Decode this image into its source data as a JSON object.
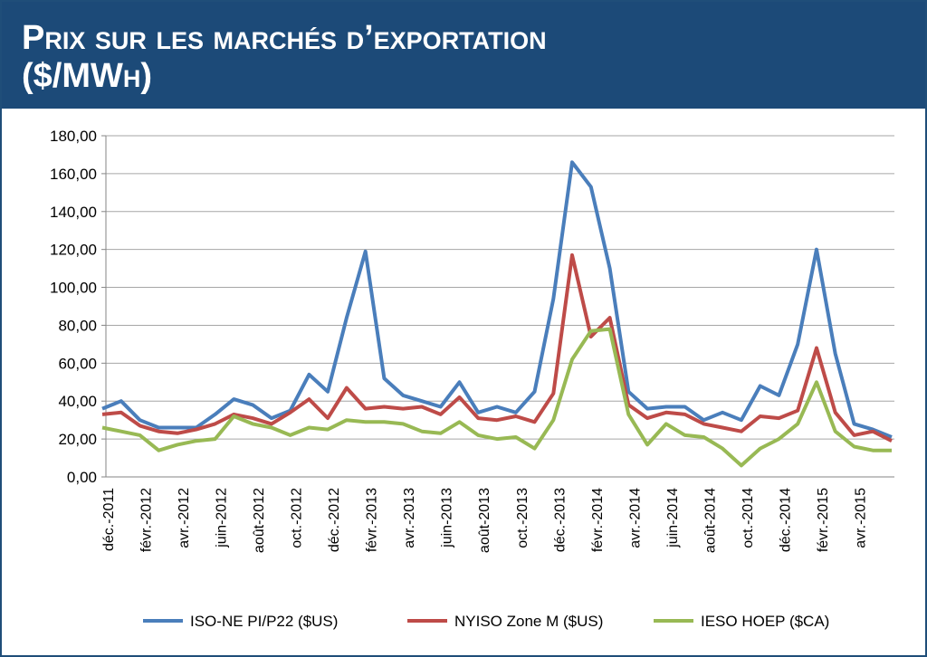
{
  "chart_data": {
    "type": "line",
    "title": "Prix sur les marchés d’exportation",
    "subtitle": "($/MWh)",
    "categories": [
      "déc.-2011",
      null,
      "févr.-2012",
      null,
      "avr.-2012",
      null,
      "juin-2012",
      null,
      "août-2012",
      null,
      "oct.-2012",
      null,
      "déc.-2012",
      null,
      "févr.-2013",
      null,
      "avr.-2013",
      null,
      "juin-2013",
      null,
      "août-2013",
      null,
      "oct.-2013",
      null,
      "déc.-2013",
      null,
      "févr.-2014",
      null,
      "avr.-2014",
      null,
      "juin-2014",
      null,
      "août-2014",
      null,
      "oct.-2014",
      null,
      "déc.-2014",
      null,
      "févr.-2015",
      null,
      "avr.-2015",
      null,
      null
    ],
    "series": [
      {
        "name": "ISO-NE PI/P22 ($US)",
        "color": "#4a7ebb",
        "values": [
          36,
          40,
          30,
          26,
          26,
          26,
          33,
          41,
          38,
          31,
          35,
          54,
          45,
          84,
          119,
          52,
          43,
          40,
          37,
          50,
          34,
          37,
          34,
          45,
          94,
          166,
          153,
          110,
          45,
          36,
          37,
          37,
          30,
          34,
          30,
          48,
          43,
          70,
          120,
          65,
          28,
          25,
          21
        ]
      },
      {
        "name": "NYISO Zone M ($US)",
        "color": "#be4b48",
        "values": [
          33,
          34,
          27,
          24,
          23,
          25,
          28,
          33,
          31,
          28,
          34,
          41,
          31,
          47,
          36,
          37,
          36,
          37,
          33,
          42,
          31,
          30,
          32,
          29,
          44,
          117,
          74,
          84,
          38,
          31,
          34,
          33,
          28,
          26,
          24,
          32,
          31,
          35,
          68,
          34,
          22,
          24,
          19
        ]
      },
      {
        "name": "IESO HOEP ($CA)",
        "color": "#98b954",
        "values": [
          26,
          24,
          22,
          14,
          17,
          19,
          20,
          32,
          28,
          26,
          22,
          26,
          25,
          30,
          29,
          29,
          28,
          24,
          23,
          29,
          22,
          20,
          21,
          15,
          30,
          62,
          77,
          78,
          33,
          17,
          28,
          22,
          21,
          15,
          6,
          15,
          20,
          28,
          50,
          24,
          16,
          14,
          14
        ]
      }
    ],
    "ylim": [
      0,
      180
    ],
    "yticks": [
      {
        "value": 0,
        "label": "0,00"
      },
      {
        "value": 20,
        "label": "20,00"
      },
      {
        "value": 40,
        "label": "40,00"
      },
      {
        "value": 60,
        "label": "60,00"
      },
      {
        "value": 80,
        "label": "80,00"
      },
      {
        "value": 100,
        "label": "100,00"
      },
      {
        "value": 120,
        "label": "120,00"
      },
      {
        "value": 140,
        "label": "140,00"
      },
      {
        "value": 160,
        "label": "160,00"
      },
      {
        "value": 180,
        "label": "180,00"
      }
    ],
    "grid": true,
    "legend": "bottom"
  }
}
